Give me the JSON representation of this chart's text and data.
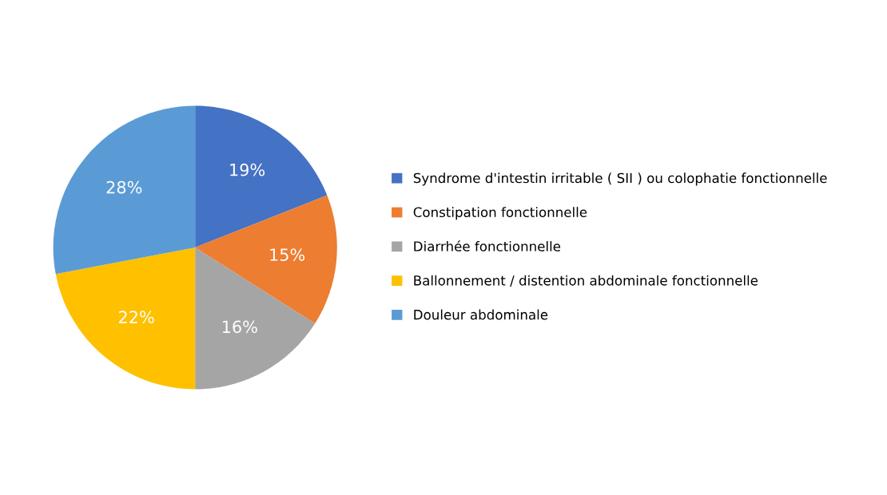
{
  "chart_data": {
    "type": "pie",
    "categories": [
      "Syndrome d'intestin irritable ( SII ) ou colophatie fonctionnelle",
      "Constipation fonctionnelle",
      "Diarrhée fonctionnelle",
      "Ballonnement / distention abdominale fonctionnelle",
      "Douleur abdominale"
    ],
    "values": [
      19,
      15,
      16,
      22,
      28
    ],
    "colors": [
      "#4472c4",
      "#ed7d31",
      "#a5a5a5",
      "#ffc000",
      "#5b9bd5"
    ],
    "value_labels": [
      "19%",
      "15%",
      "16%",
      "22%",
      "28%"
    ],
    "legend": "right"
  }
}
